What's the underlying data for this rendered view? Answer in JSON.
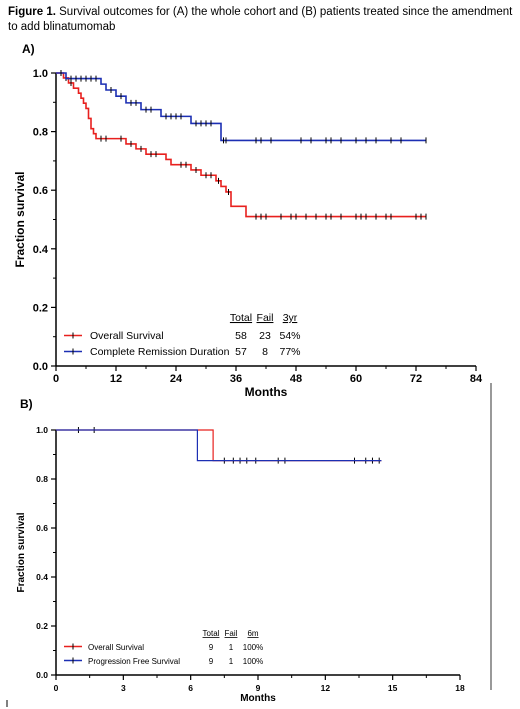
{
  "caption": {
    "label": "Figure 1.",
    "text": " Survival outcomes for (A) the whole cohort and (B) patients treated since the amendment to add blinatumomab"
  },
  "chart_data": [
    {
      "panel": "A)",
      "type": "line",
      "step": true,
      "xlabel": "Months",
      "ylabel": "Fraction survival",
      "xlim": [
        0,
        84
      ],
      "ylim": [
        0,
        1.0
      ],
      "xticks": [
        "0",
        "12",
        "24",
        "36",
        "48",
        "60",
        "72",
        "84"
      ],
      "yticks": [
        "0.0",
        "0.2",
        "0.4",
        "0.6",
        "0.8",
        "1.0"
      ],
      "table": {
        "headers": [
          "Total",
          "Fail",
          "3yr"
        ],
        "rows": [
          {
            "name": "Overall Survival",
            "values": [
              "58",
              "23",
              "54%"
            ]
          },
          {
            "name": "Complete Remission Duration",
            "values": [
              "57",
              "8",
              "77%"
            ]
          }
        ]
      },
      "series": [
        {
          "name": "Overall Survival",
          "color": "#e8201e",
          "points": [
            [
              0,
              1.0
            ],
            [
              1.5,
              0.983
            ],
            [
              2.5,
              0.966
            ],
            [
              3.5,
              0.948
            ],
            [
              4.5,
              0.931
            ],
            [
              5,
              0.914
            ],
            [
              5.5,
              0.897
            ],
            [
              6,
              0.879
            ],
            [
              6.5,
              0.845
            ],
            [
              7,
              0.81
            ],
            [
              7.5,
              0.793
            ],
            [
              8,
              0.776
            ],
            [
              14,
              0.758
            ],
            [
              16,
              0.741
            ],
            [
              18,
              0.723
            ],
            [
              22,
              0.705
            ],
            [
              23,
              0.687
            ],
            [
              27,
              0.669
            ],
            [
              29,
              0.651
            ],
            [
              32,
              0.632
            ],
            [
              33,
              0.613
            ],
            [
              34,
              0.594
            ],
            [
              35,
              0.545
            ],
            [
              38,
              0.51
            ],
            [
              74,
              0.51
            ]
          ],
          "censors": [
            [
              2,
              0.983
            ],
            [
              3,
              0.966
            ],
            [
              9,
              0.776
            ],
            [
              10,
              0.776
            ],
            [
              13,
              0.776
            ],
            [
              15,
              0.758
            ],
            [
              17,
              0.741
            ],
            [
              19,
              0.723
            ],
            [
              20,
              0.723
            ],
            [
              25,
              0.687
            ],
            [
              26,
              0.687
            ],
            [
              28,
              0.669
            ],
            [
              30,
              0.651
            ],
            [
              31,
              0.651
            ],
            [
              32.5,
              0.632
            ],
            [
              34.5,
              0.594
            ],
            [
              40,
              0.51
            ],
            [
              41,
              0.51
            ],
            [
              42,
              0.51
            ],
            [
              45,
              0.51
            ],
            [
              47,
              0.51
            ],
            [
              48,
              0.51
            ],
            [
              50,
              0.51
            ],
            [
              52,
              0.51
            ],
            [
              54,
              0.51
            ],
            [
              55,
              0.51
            ],
            [
              57,
              0.51
            ],
            [
              60,
              0.51
            ],
            [
              61,
              0.51
            ],
            [
              62,
              0.51
            ],
            [
              64,
              0.51
            ],
            [
              66,
              0.51
            ],
            [
              67,
              0.51
            ],
            [
              72,
              0.51
            ],
            [
              73,
              0.51
            ],
            [
              74,
              0.51
            ]
          ]
        },
        {
          "name": "Complete Remission Duration",
          "color": "#1c2fb3",
          "points": [
            [
              0,
              1.0
            ],
            [
              2,
              0.981
            ],
            [
              9,
              0.962
            ],
            [
              10,
              0.942
            ],
            [
              12,
              0.921
            ],
            [
              14,
              0.898
            ],
            [
              17,
              0.875
            ],
            [
              21,
              0.852
            ],
            [
              27,
              0.828
            ],
            [
              33,
              0.77
            ],
            [
              74,
              0.77
            ]
          ],
          "censors": [
            [
              1,
              1.0
            ],
            [
              3,
              0.981
            ],
            [
              4,
              0.981
            ],
            [
              5,
              0.981
            ],
            [
              6,
              0.981
            ],
            [
              7,
              0.981
            ],
            [
              8,
              0.981
            ],
            [
              11,
              0.942
            ],
            [
              13,
              0.921
            ],
            [
              15,
              0.898
            ],
            [
              16,
              0.898
            ],
            [
              18,
              0.875
            ],
            [
              19,
              0.875
            ],
            [
              22,
              0.852
            ],
            [
              23,
              0.852
            ],
            [
              24,
              0.852
            ],
            [
              25,
              0.852
            ],
            [
              28,
              0.828
            ],
            [
              29,
              0.828
            ],
            [
              30,
              0.828
            ],
            [
              31,
              0.828
            ],
            [
              33.5,
              0.77
            ],
            [
              34,
              0.77
            ],
            [
              40,
              0.77
            ],
            [
              41,
              0.77
            ],
            [
              43,
              0.77
            ],
            [
              49,
              0.77
            ],
            [
              51,
              0.77
            ],
            [
              54,
              0.77
            ],
            [
              55,
              0.77
            ],
            [
              57,
              0.77
            ],
            [
              60,
              0.77
            ],
            [
              62,
              0.77
            ],
            [
              64,
              0.77
            ],
            [
              67,
              0.77
            ],
            [
              69,
              0.77
            ],
            [
              74,
              0.77
            ]
          ]
        }
      ]
    },
    {
      "panel": "B)",
      "type": "line",
      "step": true,
      "xlabel": "Months",
      "ylabel": "Fraction survival",
      "xlim": [
        0,
        18
      ],
      "ylim": [
        0,
        1.0
      ],
      "xticks": [
        "0",
        "3",
        "6",
        "9",
        "12",
        "15",
        "18"
      ],
      "yticks": [
        "0.0",
        "0.2",
        "0.4",
        "0.6",
        "0.8",
        "1.0"
      ],
      "table": {
        "headers": [
          "Total",
          "Fail",
          "6m"
        ],
        "rows": [
          {
            "name": "Overall Survival",
            "values": [
              "9",
              "1",
              "100%"
            ]
          },
          {
            "name": "Progression Free Survival",
            "values": [
              "9",
              "1",
              "100%"
            ]
          }
        ]
      },
      "series": [
        {
          "name": "Overall Survival",
          "color": "#e8201e",
          "points": [
            [
              0,
              1.0
            ],
            [
              7,
              1.0
            ],
            [
              7,
              0.875
            ],
            [
              14.5,
              0.875
            ]
          ],
          "censors": [
            [
              1,
              1.0
            ],
            [
              1.7,
              1.0
            ],
            [
              7.5,
              0.875
            ],
            [
              7.9,
              0.875
            ],
            [
              8.2,
              0.875
            ],
            [
              8.5,
              0.875
            ],
            [
              8.9,
              0.875
            ],
            [
              9.9,
              0.875
            ],
            [
              10.2,
              0.875
            ],
            [
              13.3,
              0.875
            ],
            [
              13.8,
              0.875
            ],
            [
              14.1,
              0.875
            ],
            [
              14.4,
              0.875
            ]
          ]
        },
        {
          "name": "Progression Free Survival",
          "color": "#1c2fb3",
          "points": [
            [
              0,
              1.0
            ],
            [
              6.3,
              1.0
            ],
            [
              6.3,
              0.875
            ],
            [
              14.5,
              0.875
            ]
          ],
          "censors": []
        }
      ]
    }
  ]
}
